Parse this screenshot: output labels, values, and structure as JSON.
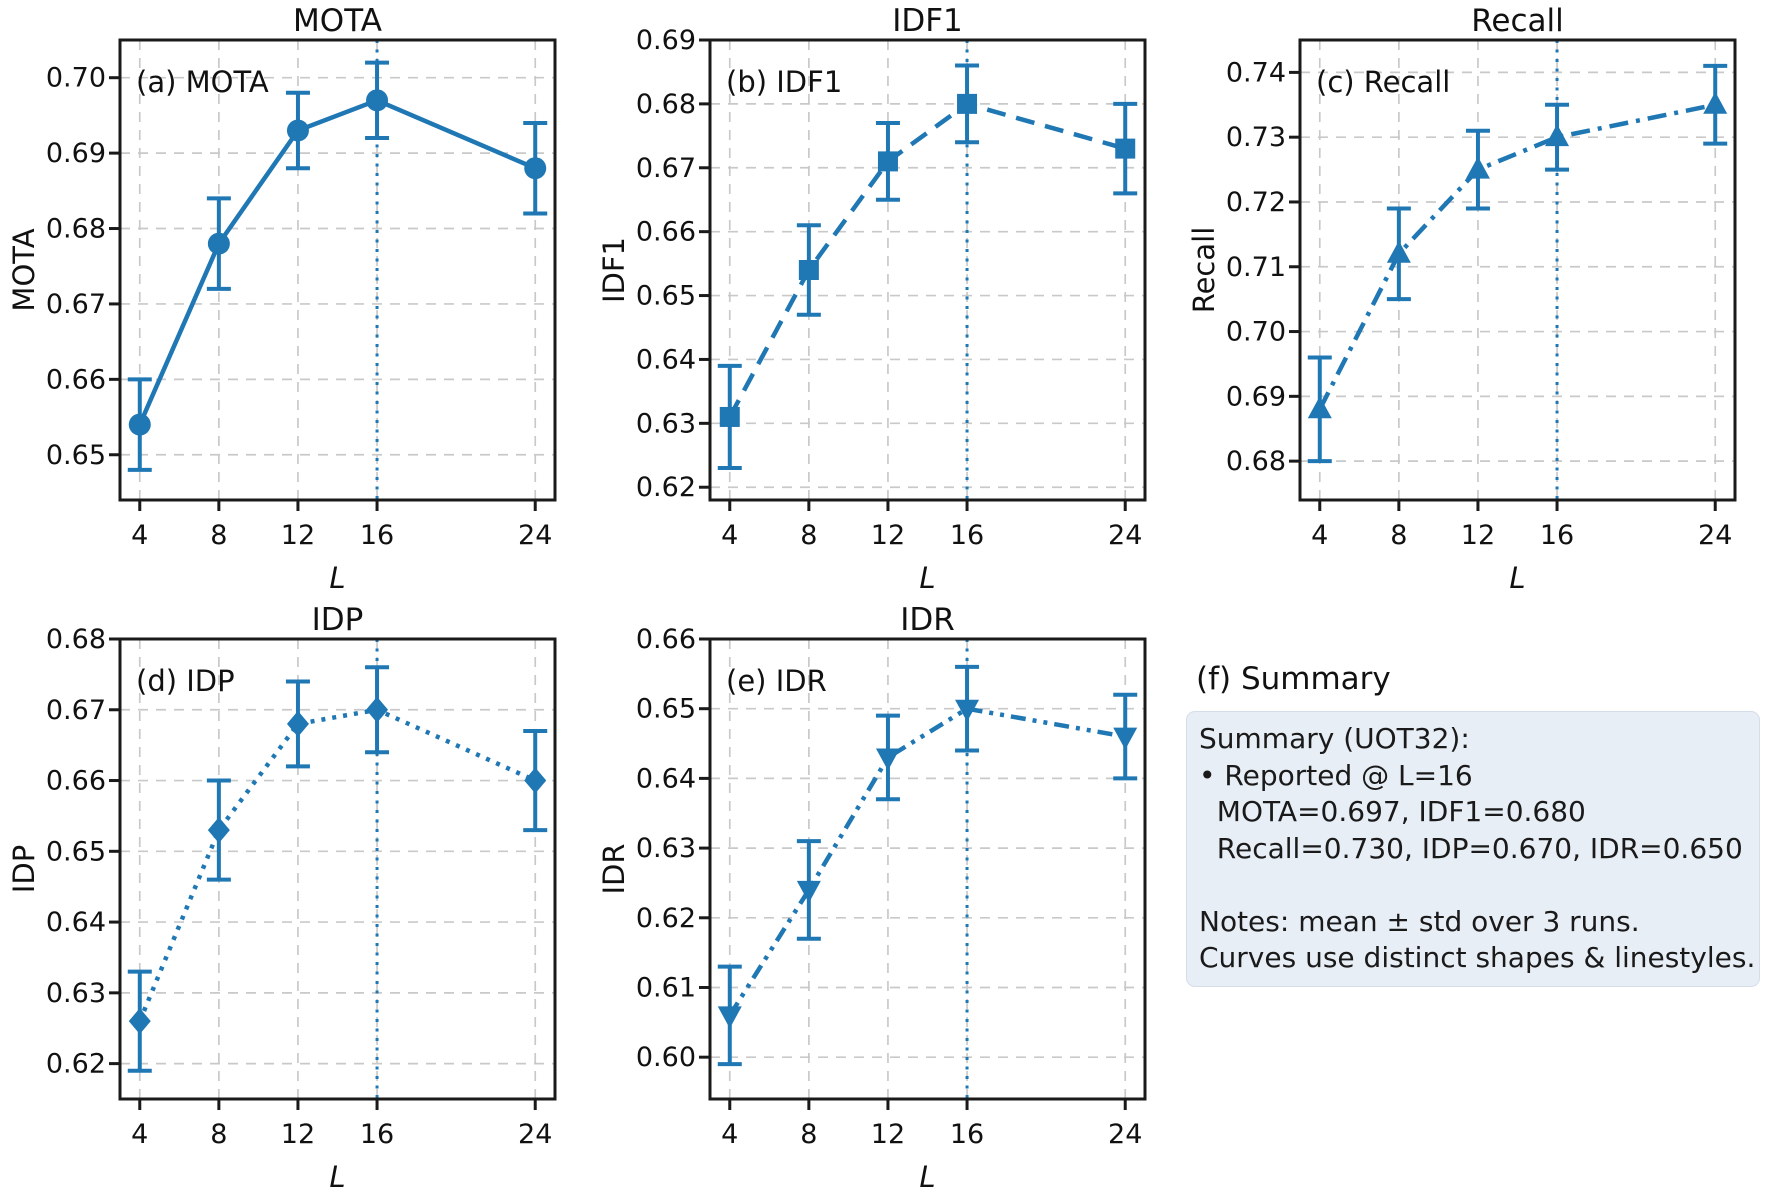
{
  "figure": {
    "background": "#ffffff",
    "accent_color": "#1f77b4",
    "grid_color": "#c9c9c9",
    "spine_color": "#1a1a1a",
    "text_color": "#111111"
  },
  "chart_data": [
    {
      "type": "line",
      "panel": "a",
      "title": "MOTA",
      "annotation": "(a) MOTA",
      "ylabel": "MOTA",
      "xlabel": "L",
      "x": [
        4,
        8,
        12,
        16,
        24
      ],
      "values": [
        0.654,
        0.678,
        0.693,
        0.697,
        0.688
      ],
      "errors": [
        0.006,
        0.006,
        0.005,
        0.005,
        0.006
      ],
      "marker": "circle",
      "linestyle": "solid",
      "xlim": [
        3,
        25
      ],
      "ylim": [
        0.644,
        0.705
      ],
      "xticks": [
        4,
        8,
        12,
        16,
        24
      ],
      "yticks": [
        0.65,
        0.66,
        0.67,
        0.68,
        0.69,
        0.7
      ],
      "vline_x": 16,
      "grid": true,
      "legend": "none",
      "grid_pos": {
        "row": 0,
        "col": 0
      }
    },
    {
      "type": "line",
      "panel": "b",
      "title": "IDF1",
      "annotation": "(b) IDF1",
      "ylabel": "IDF1",
      "xlabel": "L",
      "x": [
        4,
        8,
        12,
        16,
        24
      ],
      "values": [
        0.631,
        0.654,
        0.671,
        0.68,
        0.673
      ],
      "errors": [
        0.008,
        0.007,
        0.006,
        0.006,
        0.007
      ],
      "marker": "square",
      "linestyle": "dashed",
      "xlim": [
        3,
        25
      ],
      "ylim": [
        0.618,
        0.69
      ],
      "xticks": [
        4,
        8,
        12,
        16,
        24
      ],
      "yticks": [
        0.62,
        0.63,
        0.64,
        0.65,
        0.66,
        0.67,
        0.68,
        0.69
      ],
      "vline_x": 16,
      "grid": true,
      "legend": "none",
      "grid_pos": {
        "row": 0,
        "col": 1
      }
    },
    {
      "type": "line",
      "panel": "c",
      "title": "Recall",
      "annotation": "(c) Recall",
      "ylabel": "Recall",
      "xlabel": "L",
      "x": [
        4,
        8,
        12,
        16,
        24
      ],
      "values": [
        0.688,
        0.712,
        0.725,
        0.73,
        0.735
      ],
      "errors": [
        0.008,
        0.007,
        0.006,
        0.005,
        0.006
      ],
      "marker": "triangle-up",
      "linestyle": "dashdot",
      "xlim": [
        3,
        25
      ],
      "ylim": [
        0.674,
        0.745
      ],
      "xticks": [
        4,
        8,
        12,
        16,
        24
      ],
      "yticks": [
        0.68,
        0.69,
        0.7,
        0.71,
        0.72,
        0.73,
        0.74
      ],
      "vline_x": 16,
      "grid": true,
      "legend": "none",
      "grid_pos": {
        "row": 0,
        "col": 2
      }
    },
    {
      "type": "line",
      "panel": "d",
      "title": "IDP",
      "annotation": "(d) IDP",
      "ylabel": "IDP",
      "xlabel": "L",
      "x": [
        4,
        8,
        12,
        16,
        24
      ],
      "values": [
        0.626,
        0.653,
        0.668,
        0.67,
        0.66
      ],
      "errors": [
        0.007,
        0.007,
        0.006,
        0.006,
        0.007
      ],
      "marker": "diamond",
      "linestyle": "dotted",
      "xlim": [
        3,
        25
      ],
      "ylim": [
        0.615,
        0.68
      ],
      "xticks": [
        4,
        8,
        12,
        16,
        24
      ],
      "yticks": [
        0.62,
        0.63,
        0.64,
        0.65,
        0.66,
        0.67,
        0.68
      ],
      "vline_x": 16,
      "grid": true,
      "legend": "none",
      "grid_pos": {
        "row": 1,
        "col": 0
      }
    },
    {
      "type": "line",
      "panel": "e",
      "title": "IDR",
      "annotation": "(e) IDR",
      "ylabel": "IDR",
      "xlabel": "L",
      "x": [
        4,
        8,
        12,
        16,
        24
      ],
      "values": [
        0.606,
        0.624,
        0.643,
        0.65,
        0.646
      ],
      "errors": [
        0.007,
        0.007,
        0.006,
        0.006,
        0.006
      ],
      "marker": "triangle-down",
      "linestyle": "dashdotdot",
      "xlim": [
        3,
        25
      ],
      "ylim": [
        0.594,
        0.66
      ],
      "xticks": [
        4,
        8,
        12,
        16,
        24
      ],
      "yticks": [
        0.6,
        0.61,
        0.62,
        0.63,
        0.64,
        0.65,
        0.66
      ],
      "vline_x": 16,
      "grid": true,
      "legend": "none",
      "grid_pos": {
        "row": 1,
        "col": 1
      }
    }
  ],
  "summary": {
    "heading": "(f) Summary",
    "box_lines": [
      "Summary (UOT32):",
      "• Reported @ L=16",
      "  MOTA=0.697, IDF1=0.680",
      "  Recall=0.730, IDP=0.670, IDR=0.650",
      "",
      "Notes: mean ± std over 3 runs.",
      "Curves use distinct shapes & linestyles."
    ],
    "box_bg": "#e8eef6",
    "box_border": "#d5dde9"
  }
}
